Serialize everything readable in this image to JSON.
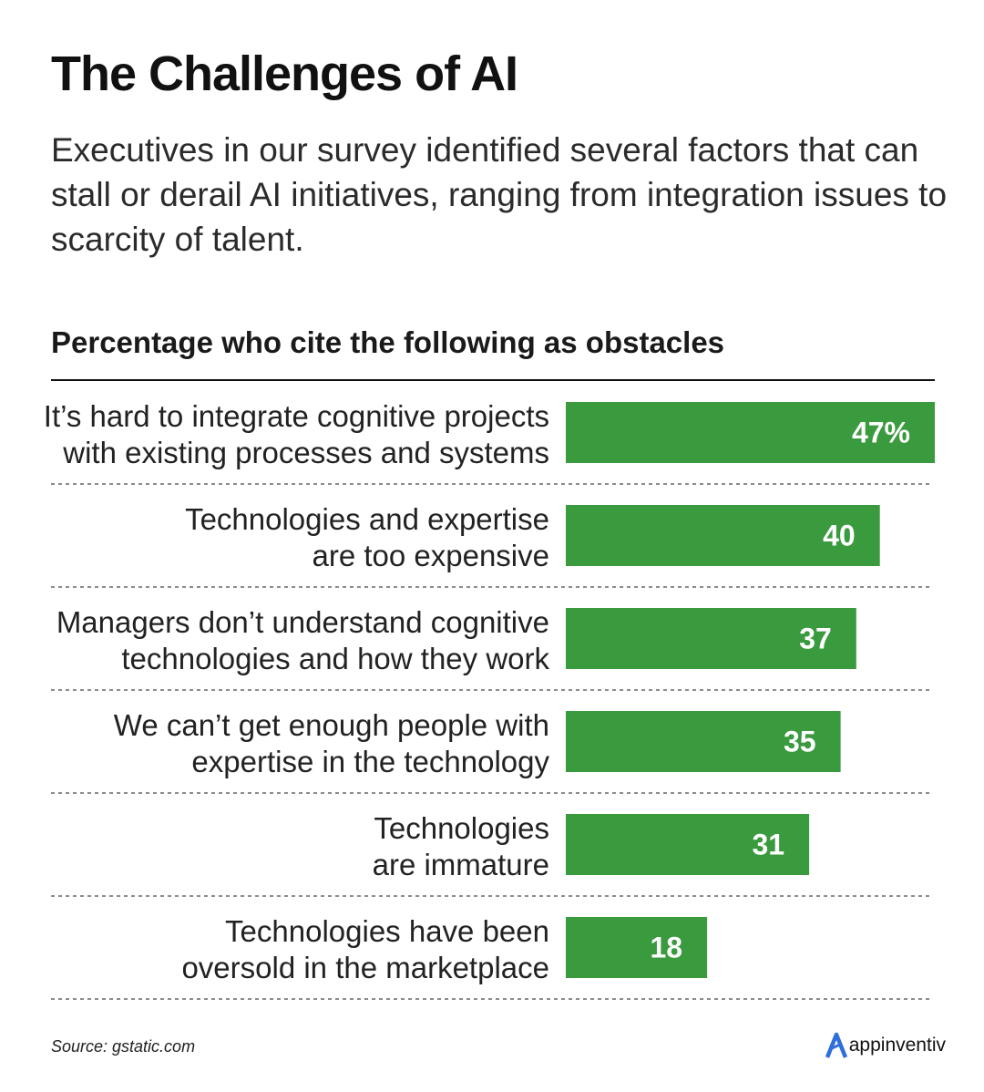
{
  "title": "The Challenges of AI",
  "subtitle": "Executives in our survey identified several factors that can stall or derail AI initiatives, ranging from integration issues to scarcity of talent.",
  "source": "Source: gstatic.com",
  "brand": "appinventiv",
  "colors": {
    "bar": "#3a9a3e",
    "text": "#222222",
    "rule": "#111111",
    "brand_accent": "#2f6fdb"
  },
  "chart_data": {
    "type": "bar",
    "orientation": "horizontal",
    "title": "Percentage who cite the following as obstacles",
    "categories": [
      [
        "It’s hard to integrate cognitive projects",
        "with existing processes and systems"
      ],
      [
        "Technologies and expertise",
        "are too expensive"
      ],
      [
        "Managers don’t understand cognitive",
        "technologies and how they work"
      ],
      [
        "We can’t get enough people with",
        "expertise in the technology"
      ],
      [
        "Technologies",
        "are immature"
      ],
      [
        "Technologies have been",
        "oversold in the marketplace"
      ]
    ],
    "values": [
      47,
      40,
      37,
      35,
      31,
      18
    ],
    "value_labels": [
      "47%",
      "40",
      "37",
      "35",
      "31",
      "18"
    ],
    "xlim": [
      0,
      47
    ],
    "unit": "%",
    "grid": false
  }
}
